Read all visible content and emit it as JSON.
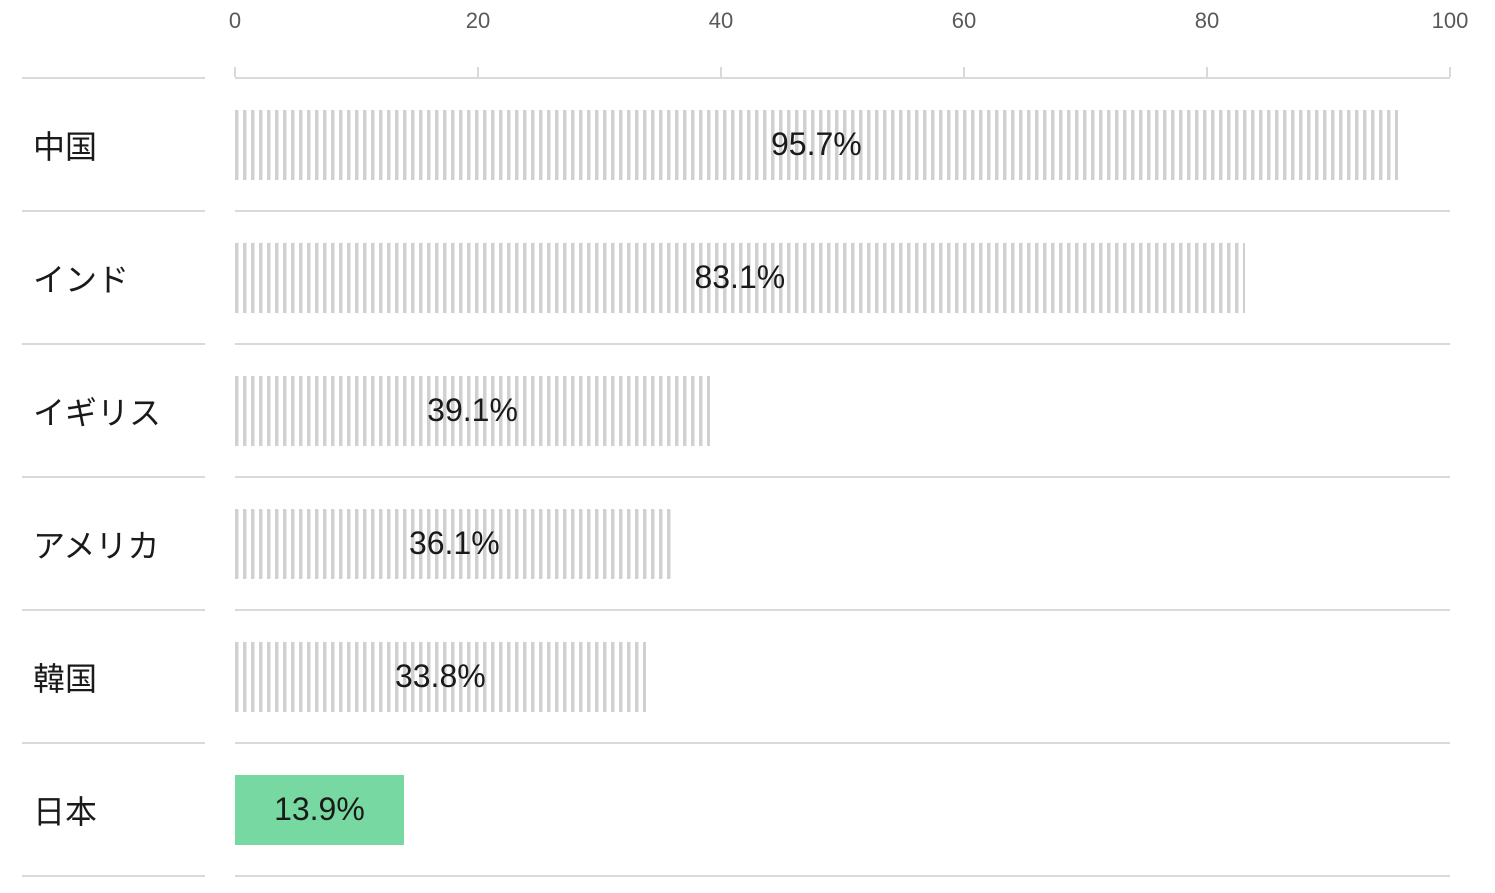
{
  "chart_data": {
    "type": "bar",
    "orientation": "horizontal",
    "categories": [
      "中国",
      "インド",
      "イギリス",
      "アメリカ",
      "韓国",
      "日本"
    ],
    "values": [
      95.7,
      83.1,
      39.1,
      36.1,
      33.8,
      13.9
    ],
    "value_labels": [
      "95.7%",
      "83.1%",
      "39.1%",
      "36.1%",
      "33.8%",
      "13.9%"
    ],
    "x_ticks": [
      "0",
      "20",
      "40",
      "60",
      "80",
      "100"
    ],
    "xlim": [
      0,
      100
    ],
    "highlight_category": "日本",
    "legend_position": "none",
    "grid": "off"
  },
  "colors": {
    "stripe-gray": "#d0d0d0",
    "highlight-green": "#77d8a2",
    "axis-line": "#d9d9d9",
    "tick-text": "#595959",
    "label-text": "#1a1a1a"
  }
}
